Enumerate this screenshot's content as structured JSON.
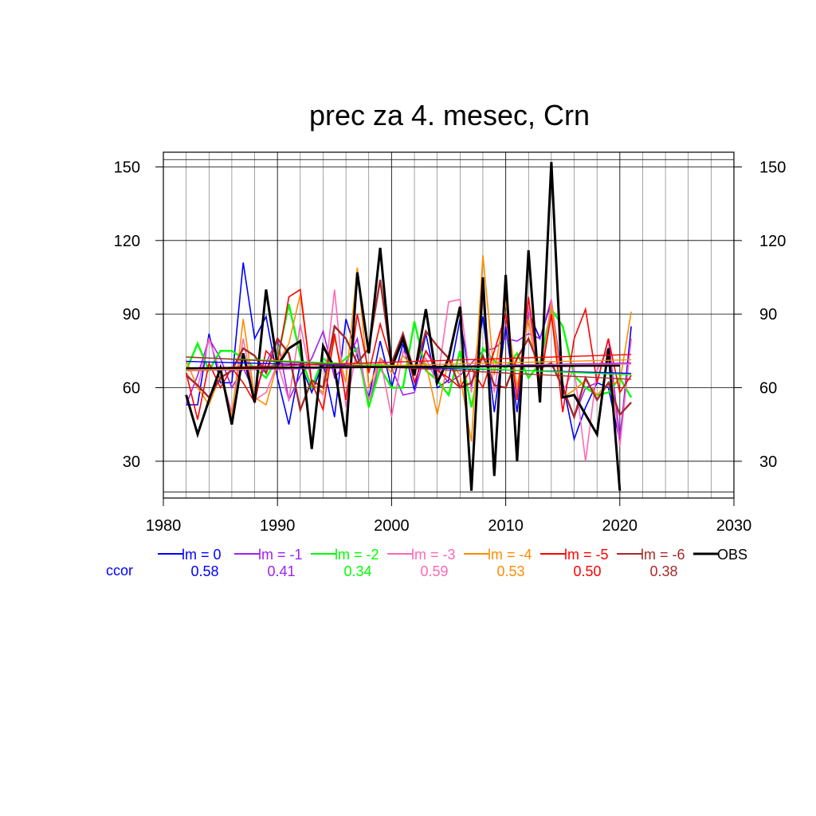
{
  "chart_data": {
    "type": "line",
    "title": "prec za 4. mesec, Crn",
    "xlim": [
      1980,
      2030
    ],
    "ylim": [
      15,
      156
    ],
    "xticks": [
      1980,
      1990,
      2000,
      2010,
      2020,
      2030
    ],
    "yticks": [
      30,
      60,
      90,
      120,
      150
    ],
    "grid": true,
    "legend_position": "bottom",
    "ccor_label": "ccor",
    "x": [
      1982,
      1983,
      1984,
      1985,
      1986,
      1987,
      1988,
      1989,
      1990,
      1991,
      1992,
      1993,
      1994,
      1995,
      1996,
      1997,
      1998,
      1999,
      2000,
      2001,
      2002,
      2003,
      2004,
      2005,
      2006,
      2007,
      2008,
      2009,
      2010,
      2011,
      2012,
      2013,
      2014,
      2015,
      2016,
      2017,
      2018,
      2019,
      2020,
      2021
    ],
    "series": [
      {
        "name": "lm = 0",
        "ccor": "0.58",
        "color": "#0000ff",
        "width": 1.6,
        "values": [
          53,
          53,
          82,
          62,
          62,
          111,
          80,
          89,
          64,
          45,
          70,
          58,
          70,
          48,
          88,
          73,
          56,
          79,
          60,
          78,
          59,
          82,
          60,
          63,
          88,
          60,
          89,
          50,
          85,
          50,
          91,
          80,
          95,
          62,
          39,
          52,
          62,
          60,
          38,
          85
        ]
      },
      {
        "name": "lm = -1",
        "ccor": "0.41",
        "color": "#a020f0",
        "width": 1.6,
        "values": [
          53,
          65,
          80,
          72,
          60,
          68,
          58,
          70,
          80,
          55,
          65,
          72,
          83,
          64,
          70,
          80,
          52,
          72,
          68,
          57,
          58,
          75,
          68,
          62,
          65,
          70,
          75,
          76,
          80,
          79,
          82,
          80,
          96,
          60,
          48,
          60,
          62,
          80,
          40,
          80
        ]
      },
      {
        "name": "lm = -2",
        "ccor": "0.34",
        "color": "#00ff00",
        "width": 2.4,
        "values": [
          67,
          78,
          67,
          75,
          75,
          72,
          68,
          64,
          72,
          94,
          73,
          60,
          72,
          68,
          72,
          76,
          52,
          68,
          60,
          60,
          87,
          67,
          63,
          57,
          75,
          52,
          76,
          71,
          68,
          74,
          64,
          70,
          92,
          85,
          65,
          60,
          57,
          58,
          64,
          56
        ]
      },
      {
        "name": "lm = -3",
        "ccor": "0.59",
        "color": "#ff69b4",
        "width": 1.6,
        "values": [
          66,
          60,
          80,
          66,
          50,
          80,
          55,
          58,
          70,
          55,
          86,
          62,
          57,
          100,
          52,
          76,
          55,
          72,
          48,
          75,
          68,
          72,
          62,
          95,
          96,
          58,
          96,
          58,
          90,
          58,
          93,
          60,
          96,
          58,
          68,
          30,
          67,
          76,
          36,
          80
        ]
      },
      {
        "name": "lm = -4",
        "ccor": "0.53",
        "color": "#ff8c00",
        "width": 1.6,
        "values": [
          71,
          60,
          53,
          65,
          48,
          88,
          56,
          53,
          70,
          78,
          98,
          62,
          58,
          80,
          62,
          109,
          60,
          72,
          66,
          73,
          68,
          70,
          49,
          72,
          65,
          38,
          114,
          65,
          95,
          60,
          88,
          58,
          94,
          56,
          59,
          63,
          57,
          62,
          62,
          91
        ]
      },
      {
        "name": "lm = -5",
        "ccor": "0.50",
        "color": "#ff0000",
        "width": 1.6,
        "values": [
          66,
          47,
          70,
          60,
          68,
          62,
          54,
          75,
          70,
          97,
          100,
          62,
          51,
          82,
          55,
          90,
          66,
          86,
          70,
          82,
          62,
          75,
          67,
          64,
          60,
          68,
          60,
          75,
          90,
          55,
          97,
          62,
          90,
          50,
          80,
          92,
          62,
          80,
          58,
          65
        ]
      },
      {
        "name": "lm = -6",
        "ccor": "0.38",
        "color": "#a52a2a",
        "width": 2.4,
        "values": [
          65,
          61,
          56,
          64,
          67,
          76,
          73,
          66,
          80,
          74,
          51,
          63,
          60,
          85,
          80,
          70,
          76,
          104,
          70,
          82,
          66,
          83,
          77,
          72,
          60,
          62,
          73,
          61,
          60,
          72,
          80,
          68,
          70,
          60,
          48,
          64,
          55,
          62,
          49,
          54
        ]
      },
      {
        "name": "OBS",
        "ccor": "",
        "color": "#000000",
        "width": 3.0,
        "values": [
          57,
          41,
          55,
          68,
          45,
          74,
          54,
          100,
          69,
          76,
          79,
          35,
          77,
          68,
          40,
          107,
          74,
          117,
          68,
          80,
          65,
          92,
          62,
          72,
          93,
          18,
          105,
          24,
          106,
          30,
          116,
          54,
          152,
          56,
          57,
          49,
          41,
          76,
          18,
          null
        ]
      }
    ]
  }
}
